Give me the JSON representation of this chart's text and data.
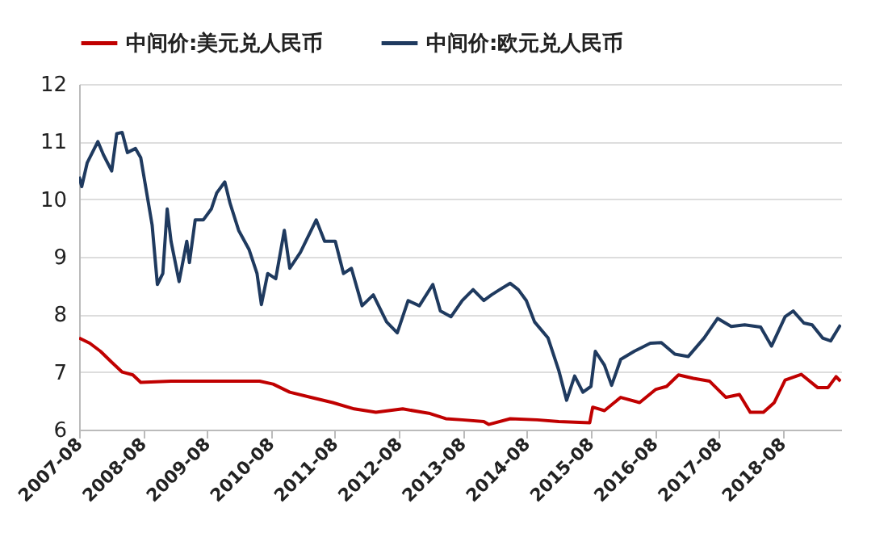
{
  "chart_data": {
    "type": "line",
    "legend": "top",
    "grid": "y",
    "xlim": [
      "2007-08",
      "2019-07"
    ],
    "xticks": [
      "2007-08",
      "2008-08",
      "2009-08",
      "2010-08",
      "2011-08",
      "2012-08",
      "2013-08",
      "2014-08",
      "2015-08",
      "2016-08",
      "2017-08",
      "2018-08"
    ],
    "ylim": [
      6,
      12
    ],
    "yticks": [
      6,
      7,
      8,
      9,
      10,
      11,
      12
    ],
    "series": [
      {
        "name": "中间价:美元兑人民币",
        "color": "#c00000",
        "x": [
          "2007-08-01",
          "2007-10-01",
          "2007-12-01",
          "2008-02-03",
          "2008-04-03",
          "2008-06-03",
          "2008-07-18",
          "2009-01-07",
          "2010-05-28",
          "2010-08-13",
          "2010-11-16",
          "2011-03-16",
          "2011-07-19",
          "2011-11-19",
          "2012-03-22",
          "2012-08-22",
          "2013-01-25",
          "2013-04-25",
          "2013-07-28",
          "2013-11-28",
          "2013-12-26",
          "2014-04-28",
          "2014-09-29",
          "2015-01-30",
          "2015-07-26",
          "2015-08-12",
          "2015-10-18",
          "2016-01-19",
          "2016-05-06",
          "2016-08-07",
          "2016-10-07",
          "2016-12-14",
          "2017-03-09",
          "2017-06-10",
          "2017-09-11",
          "2017-11-27",
          "2018-01-28",
          "2018-04-13",
          "2018-06-14",
          "2018-08-15",
          "2018-11-15",
          "2019-02-16",
          "2019-04-17",
          "2019-06-02",
          "2019-06-27"
        ],
        "values": [
          7.59,
          7.5,
          7.36,
          7.17,
          7.0,
          6.95,
          6.82,
          6.84,
          6.84,
          6.79,
          6.65,
          6.56,
          6.47,
          6.36,
          6.3,
          6.36,
          6.28,
          6.19,
          6.17,
          6.14,
          6.09,
          6.19,
          6.17,
          6.14,
          6.12,
          6.39,
          6.33,
          6.56,
          6.47,
          6.7,
          6.75,
          6.95,
          6.89,
          6.84,
          6.56,
          6.61,
          6.3,
          6.3,
          6.47,
          6.86,
          6.96,
          6.73,
          6.73,
          6.92,
          6.84
        ]
      },
      {
        "name": "中间价:欧元兑人民币",
        "color": "#1f3a5f",
        "x": [
          "2007-08-01",
          "2007-08-16",
          "2007-09-16",
          "2007-11-16",
          "2007-12-18",
          "2008-02-03",
          "2008-03-03",
          "2008-04-03",
          "2008-05-03",
          "2008-06-18",
          "2008-07-18",
          "2008-08-21",
          "2008-09-21",
          "2008-10-21",
          "2008-11-21",
          "2008-12-16",
          "2009-01-07",
          "2009-02-22",
          "2009-04-07",
          "2009-04-22",
          "2009-05-25",
          "2009-07-10",
          "2009-08-25",
          "2009-09-25",
          "2009-11-10",
          "2009-12-10",
          "2010-01-28",
          "2010-03-28",
          "2010-05-13",
          "2010-06-07",
          "2010-07-13",
          "2010-08-28",
          "2010-10-16",
          "2010-11-16",
          "2011-01-16",
          "2011-04-16",
          "2011-06-03",
          "2011-08-03",
          "2011-09-19",
          "2011-11-03",
          "2012-01-03",
          "2012-03-07",
          "2012-05-22",
          "2012-07-22",
          "2012-09-22",
          "2012-11-25",
          "2013-02-10",
          "2013-03-25",
          "2013-05-25",
          "2013-07-28",
          "2013-09-28",
          "2013-11-28",
          "2014-01-11",
          "2014-02-27",
          "2014-04-28",
          "2014-06-13",
          "2014-07-29",
          "2014-09-14",
          "2014-11-30",
          "2015-01-30",
          "2015-03-16",
          "2015-05-01",
          "2015-06-17",
          "2015-08-02",
          "2015-08-27",
          "2015-10-18",
          "2015-11-28",
          "2016-01-19",
          "2016-04-05",
          "2016-07-06",
          "2016-09-07",
          "2016-11-23",
          "2017-02-08",
          "2017-05-09",
          "2017-07-25",
          "2017-10-11",
          "2017-12-27",
          "2018-03-28",
          "2018-05-29",
          "2018-08-15",
          "2018-09-30",
          "2018-11-30",
          "2019-01-16",
          "2019-03-17",
          "2019-05-02",
          "2019-06-27"
        ],
        "values": [
          10.39,
          10.22,
          10.63,
          11.0,
          10.77,
          10.49,
          11.14,
          11.16,
          10.81,
          10.88,
          10.72,
          10.11,
          9.55,
          8.52,
          8.71,
          9.83,
          9.27,
          8.57,
          9.27,
          8.9,
          9.64,
          9.64,
          9.83,
          10.11,
          10.3,
          9.93,
          9.46,
          9.13,
          8.71,
          8.17,
          8.71,
          8.62,
          9.46,
          8.8,
          9.08,
          9.64,
          9.27,
          9.27,
          8.71,
          8.8,
          8.15,
          8.34,
          7.87,
          7.68,
          8.24,
          8.15,
          8.52,
          8.06,
          7.96,
          8.24,
          8.43,
          8.24,
          8.34,
          8.43,
          8.54,
          8.43,
          8.24,
          7.87,
          7.59,
          7.03,
          6.51,
          6.93,
          6.65,
          6.75,
          7.36,
          7.12,
          6.77,
          7.22,
          7.36,
          7.5,
          7.51,
          7.31,
          7.27,
          7.59,
          7.93,
          7.79,
          7.82,
          7.78,
          7.45,
          7.96,
          8.06,
          7.85,
          7.82,
          7.59,
          7.54,
          7.82
        ]
      }
    ]
  }
}
